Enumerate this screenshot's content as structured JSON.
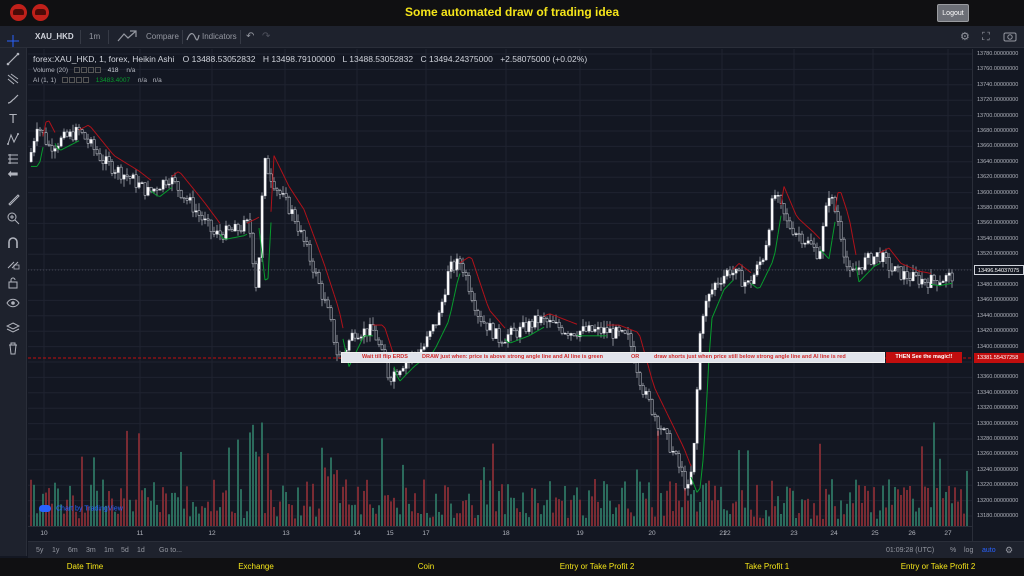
{
  "header": {
    "title": "Some automated draw of trading idea",
    "logout_label": "Logout"
  },
  "toolbar": {
    "symbol": "XAU_HKD",
    "interval": "1m",
    "compare_label": "Compare",
    "indicators_label": "Indicators"
  },
  "legend": {
    "title": "forex:XAU_HKD, 1, forex, Heikin Ashi",
    "ohlc": [
      "O 13488.53052832",
      "H 13498.79100000",
      "L 13488.53052832",
      "C 13494.24375000",
      "+2.58075000 (+0.02%)"
    ],
    "volume_label": "Volume (20)",
    "volume_value": "418",
    "volume_na": "n/a",
    "ai_label": "AI (1, 1)",
    "ai_value": "13483.4007",
    "ai_na1": "n/a",
    "ai_na2": "n/a"
  },
  "banner": {
    "part1": "Wait till flip ERDS",
    "part2": "DRAW just when:  price is above strong angle line and AI line is green",
    "part3": "OR",
    "part4": "draw shorts just when price still below strong angle line and AI line is red",
    "end": "THEN See the magic!!"
  },
  "credit": "Chart by TradingView",
  "price_axis": {
    "labels": [
      "13780.00000000",
      "13760.00000000",
      "13740.00000000",
      "13720.00000000",
      "13700.00000000",
      "13680.00000000",
      "13660.00000000",
      "13640.00000000",
      "13620.00000000",
      "13600.00000000",
      "13580.00000000",
      "13560.00000000",
      "13540.00000000",
      "13520.00000000",
      "13500.00000000",
      "13480.00000000",
      "13460.00000000",
      "13440.00000000",
      "13420.00000000",
      "13400.00000000",
      "13380.00000000",
      "13360.00000000",
      "13340.00000000",
      "13320.00000000",
      "13300.00000000",
      "13280.00000000",
      "13260.00000000",
      "13240.00000000",
      "13220.00000000",
      "13200.00000000",
      "13180.00000000"
    ],
    "current_price": "13496.54037075",
    "line_price": "13381.55437258"
  },
  "time_axis": {
    "labels": [
      "10",
      "11",
      "12",
      "13",
      "14",
      "15",
      "17",
      "18",
      "19",
      "20",
      "21",
      "22",
      "23",
      "24",
      "25",
      "26",
      "27"
    ]
  },
  "bottombar": {
    "ranges": [
      "5y",
      "1y",
      "6m",
      "3m",
      "1m",
      "5d",
      "1d"
    ],
    "goto": "Go to...",
    "clock": "01:09:28 (UTC)",
    "pct": "%",
    "log": "log",
    "auto": "auto"
  },
  "footer": {
    "labels": [
      "Date Time",
      "Exchange",
      "Coin",
      "Entry or Take Profit 2",
      "Take Profit 1",
      "Entry or Take Profit 2"
    ]
  },
  "colors": {
    "header_title": "#f5e51a",
    "banner_text": "#cf2b2b",
    "banner_end_bg": "#c10e0e",
    "ai_green": "#089d2e",
    "ai_red": "#b0121a",
    "up_volume": "#2b6b5c",
    "down_volume": "#7a2b33"
  }
}
